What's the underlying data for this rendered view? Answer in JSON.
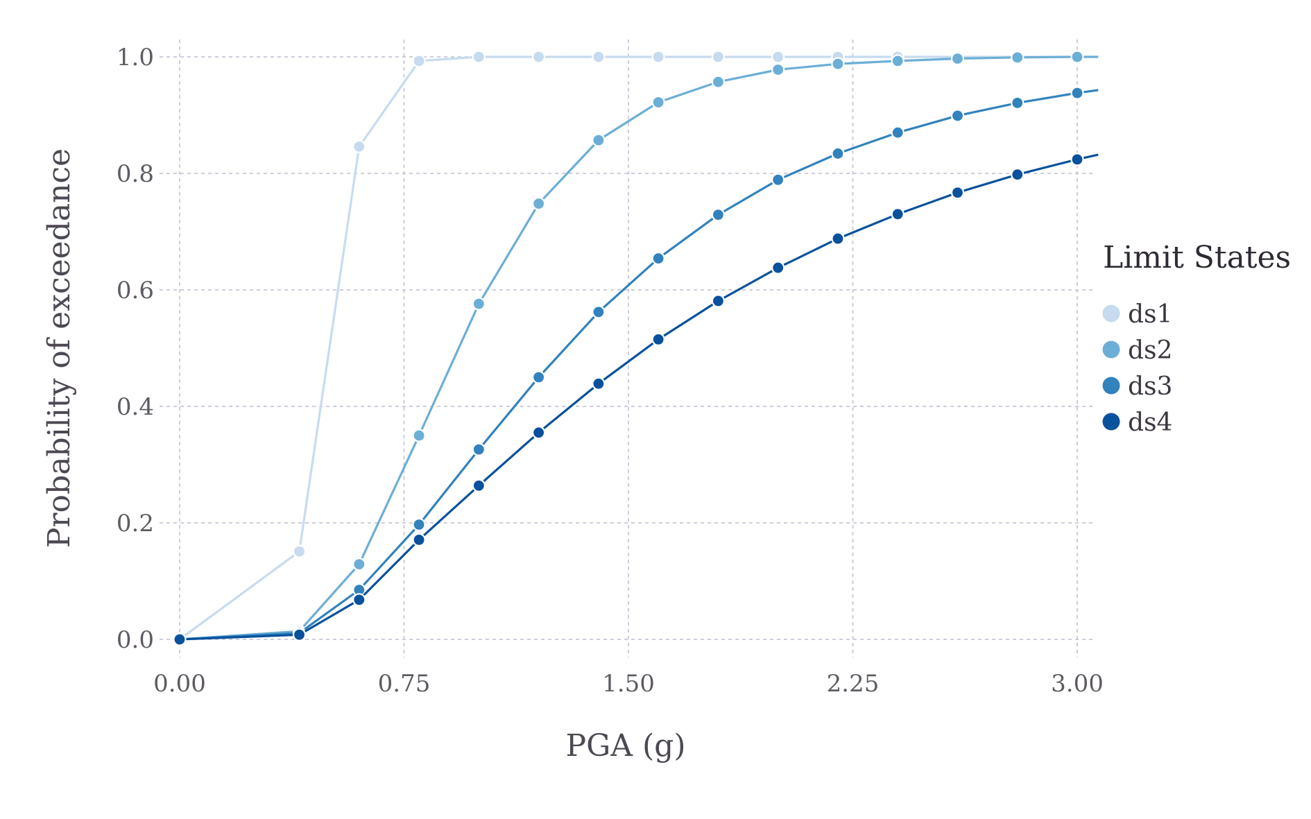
{
  "chart_data": {
    "type": "line",
    "title": "",
    "xlabel": "PGA (g)",
    "ylabel": "Probability of exceedance",
    "xlim": [
      -0.1,
      3.07
    ],
    "ylim": [
      -0.04,
      1.03
    ],
    "xticks": [
      0.0,
      0.75,
      1.5,
      2.25,
      3.0
    ],
    "xtick_labels": [
      "0.00",
      "0.75",
      "1.50",
      "2.25",
      "3.00"
    ],
    "yticks": [
      0.0,
      0.2,
      0.4,
      0.6,
      0.8,
      1.0
    ],
    "ytick_labels": [
      "0.0",
      "0.2",
      "0.4",
      "0.6",
      "0.8",
      "1.0"
    ],
    "grid": true,
    "legend": {
      "title": "Limit States",
      "placement": "right"
    },
    "x": [
      0.0,
      0.4,
      0.6,
      0.8,
      1.0,
      1.2,
      1.4,
      1.6,
      1.8,
      2.0,
      2.2,
      2.4,
      2.6,
      2.8,
      3.0,
      3.07
    ],
    "series": [
      {
        "name": "ds1",
        "color": "#c6dbef",
        "values": [
          0.0,
          0.151,
          0.846,
          0.993,
          1.0,
          1.0,
          1.0,
          1.0,
          1.0,
          1.0,
          1.0,
          1.0,
          1.0,
          1.0,
          1.0,
          1.0
        ]
      },
      {
        "name": "ds2",
        "color": "#6baed6",
        "values": [
          0.0,
          0.014,
          0.129,
          0.35,
          0.576,
          0.748,
          0.857,
          0.922,
          0.957,
          0.978,
          0.988,
          0.993,
          0.997,
          0.999,
          1.0,
          1.0
        ]
      },
      {
        "name": "ds3",
        "color": "#3182bd",
        "values": [
          0.0,
          0.011,
          0.085,
          0.197,
          0.326,
          0.45,
          0.562,
          0.654,
          0.729,
          0.789,
          0.834,
          0.87,
          0.899,
          0.921,
          0.938,
          0.943
        ]
      },
      {
        "name": "ds4",
        "color": "#08519c",
        "values": [
          0.0,
          0.008,
          0.068,
          0.171,
          0.264,
          0.355,
          0.439,
          0.515,
          0.581,
          0.638,
          0.688,
          0.73,
          0.767,
          0.798,
          0.824,
          0.832
        ]
      }
    ]
  }
}
